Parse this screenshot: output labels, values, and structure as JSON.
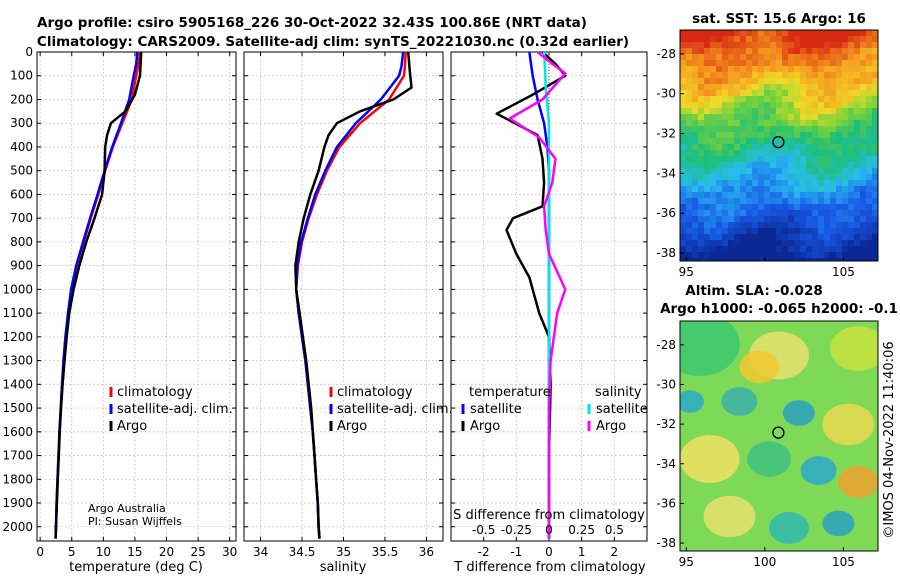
{
  "figure": {
    "title_line1": "Argo profile: csiro 5905168_226 30-Oct-2022 32.43S 100.86E (NRT data)",
    "title_line2": "Climatology: CARS2009. Satellite-adj clim: synTS_20221030.nc (0.32d earlier)",
    "imos_stamp": "©IMOS 04-Nov-2022 11:40:06",
    "credit_line1": "Argo Australia",
    "credit_line2": "PI: Susan Wijffels"
  },
  "colors": {
    "climatology": "#ff0000",
    "satellite": "#0000ff",
    "argo": "#000000",
    "sat_salinity": "#00e5ee",
    "argo_salinity": "#ff00ff"
  },
  "chart_data": [
    {
      "type": "line",
      "id": "temperature",
      "xlabel": "temperature (deg C)",
      "ylabel": "",
      "xlim": [
        -0.5,
        31
      ],
      "ylim": [
        2060,
        0
      ],
      "xticks": [
        0,
        5,
        10,
        15,
        20,
        25,
        30
      ],
      "xtick_labels": [
        "0",
        "5",
        "10",
        "15",
        "20",
        "25",
        "30"
      ],
      "yticks": [
        0,
        100,
        200,
        300,
        400,
        500,
        600,
        700,
        800,
        900,
        1000,
        1100,
        1200,
        1300,
        1400,
        1500,
        1600,
        1700,
        1800,
        1900,
        2000
      ],
      "grid": true,
      "legend": [
        "climatology",
        "satellite-adj. clim.",
        "Argo"
      ],
      "series": [
        {
          "name": "climatology",
          "color": "red",
          "points": [
            [
              15.8,
              0
            ],
            [
              15.6,
              50
            ],
            [
              15.2,
              100
            ],
            [
              14.5,
              200
            ],
            [
              13,
              300
            ],
            [
              11.5,
              400
            ],
            [
              10.3,
              500
            ],
            [
              9.2,
              600
            ],
            [
              8,
              700
            ],
            [
              6.9,
              800
            ],
            [
              5.8,
              900
            ],
            [
              5.0,
              1000
            ],
            [
              4.5,
              1100
            ],
            [
              4.1,
              1200
            ],
            [
              3.8,
              1300
            ],
            [
              3.5,
              1400
            ],
            [
              3.3,
              1500
            ],
            [
              3.1,
              1600
            ],
            [
              2.9,
              1700
            ],
            [
              2.75,
              1800
            ],
            [
              2.6,
              1900
            ],
            [
              2.5,
              2000
            ],
            [
              2.45,
              2050
            ]
          ]
        },
        {
          "name": "satellite-adj. clim.",
          "color": "blue",
          "points": [
            [
              15.4,
              0
            ],
            [
              15.2,
              50
            ],
            [
              14.8,
              100
            ],
            [
              14.1,
              200
            ],
            [
              12.8,
              300
            ],
            [
              11.4,
              400
            ],
            [
              10.2,
              500
            ],
            [
              9.1,
              600
            ],
            [
              7.9,
              700
            ],
            [
              6.8,
              800
            ],
            [
              5.7,
              900
            ],
            [
              4.9,
              1000
            ],
            [
              4.4,
              1100
            ],
            [
              4.0,
              1200
            ],
            [
              3.7,
              1300
            ],
            [
              3.45,
              1400
            ],
            [
              3.25,
              1500
            ],
            [
              3.05,
              1600
            ],
            [
              2.9,
              1700
            ],
            [
              2.75,
              1800
            ],
            [
              2.6,
              1900
            ],
            [
              2.5,
              2000
            ],
            [
              2.45,
              2050
            ]
          ]
        },
        {
          "name": "Argo",
          "color": "black",
          "points": [
            [
              16.0,
              0
            ],
            [
              15.9,
              50
            ],
            [
              15.8,
              100
            ],
            [
              15,
              180
            ],
            [
              13.5,
              250
            ],
            [
              11.2,
              300
            ],
            [
              10.6,
              350
            ],
            [
              10.3,
              400
            ],
            [
              10.2,
              500
            ],
            [
              9.8,
              600
            ],
            [
              8.6,
              700
            ],
            [
              7.3,
              800
            ],
            [
              6.2,
              900
            ],
            [
              5.3,
              1000
            ],
            [
              4.6,
              1100
            ],
            [
              4.2,
              1200
            ],
            [
              3.85,
              1300
            ],
            [
              3.55,
              1400
            ],
            [
              3.3,
              1500
            ],
            [
              3.1,
              1600
            ],
            [
              2.95,
              1700
            ],
            [
              2.8,
              1800
            ],
            [
              2.65,
              1900
            ],
            [
              2.5,
              2000
            ],
            [
              2.45,
              2050
            ]
          ]
        }
      ]
    },
    {
      "type": "line",
      "id": "salinity",
      "xlabel": "salinity",
      "ylabel": "",
      "xlim": [
        33.8,
        36.2
      ],
      "ylim": [
        2060,
        0
      ],
      "xticks": [
        34,
        34.5,
        35,
        35.5,
        36
      ],
      "xtick_labels": [
        "34",
        "34.5",
        "35",
        "35.5",
        "36"
      ],
      "grid": true,
      "legend": [
        "climatology",
        "satellite-adj. clim.",
        "Argo"
      ],
      "series": [
        {
          "name": "climatology",
          "color": "red",
          "points": [
            [
              35.75,
              0
            ],
            [
              35.74,
              60
            ],
            [
              35.73,
              100
            ],
            [
              35.55,
              200
            ],
            [
              35.2,
              300
            ],
            [
              34.95,
              400
            ],
            [
              34.8,
              500
            ],
            [
              34.68,
              600
            ],
            [
              34.58,
              700
            ],
            [
              34.5,
              800
            ],
            [
              34.45,
              900
            ],
            [
              34.43,
              1000
            ],
            [
              34.46,
              1100
            ],
            [
              34.5,
              1200
            ],
            [
              34.54,
              1300
            ],
            [
              34.57,
              1400
            ],
            [
              34.6,
              1500
            ],
            [
              34.63,
              1600
            ],
            [
              34.65,
              1700
            ],
            [
              34.67,
              1800
            ],
            [
              34.69,
              1900
            ],
            [
              34.7,
              2000
            ],
            [
              34.71,
              2050
            ]
          ]
        },
        {
          "name": "satellite-adj. clim.",
          "color": "blue",
          "points": [
            [
              35.72,
              0
            ],
            [
              35.7,
              60
            ],
            [
              35.67,
              100
            ],
            [
              35.45,
              200
            ],
            [
              35.15,
              300
            ],
            [
              34.92,
              400
            ],
            [
              34.78,
              500
            ],
            [
              34.66,
              600
            ],
            [
              34.57,
              700
            ],
            [
              34.49,
              800
            ],
            [
              34.44,
              900
            ],
            [
              34.43,
              1000
            ],
            [
              34.46,
              1100
            ],
            [
              34.5,
              1200
            ],
            [
              34.54,
              1300
            ],
            [
              34.57,
              1400
            ],
            [
              34.6,
              1500
            ],
            [
              34.63,
              1600
            ],
            [
              34.65,
              1700
            ],
            [
              34.67,
              1800
            ],
            [
              34.69,
              1900
            ],
            [
              34.7,
              2000
            ],
            [
              34.71,
              2050
            ]
          ]
        },
        {
          "name": "Argo",
          "color": "black",
          "points": [
            [
              35.78,
              0
            ],
            [
              35.8,
              80
            ],
            [
              35.82,
              150
            ],
            [
              35.6,
              200
            ],
            [
              35.2,
              250
            ],
            [
              34.92,
              300
            ],
            [
              34.82,
              350
            ],
            [
              34.77,
              400
            ],
            [
              34.7,
              500
            ],
            [
              34.6,
              600
            ],
            [
              34.52,
              700
            ],
            [
              34.46,
              800
            ],
            [
              34.42,
              900
            ],
            [
              34.43,
              1000
            ],
            [
              34.47,
              1100
            ],
            [
              34.51,
              1200
            ],
            [
              34.55,
              1300
            ],
            [
              34.58,
              1400
            ],
            [
              34.61,
              1500
            ],
            [
              34.63,
              1600
            ],
            [
              34.65,
              1700
            ],
            [
              34.67,
              1800
            ],
            [
              34.69,
              1900
            ],
            [
              34.7,
              2000
            ],
            [
              34.71,
              2050
            ]
          ]
        }
      ]
    },
    {
      "type": "line",
      "id": "difference",
      "xlabel": "T difference from climatology",
      "xlabel_top": "S difference from climatology",
      "xlim": [
        -3,
        3
      ],
      "ylim": [
        2060,
        0
      ],
      "xticks": [
        -2,
        -1,
        0,
        1,
        2
      ],
      "xtick_labels": [
        "-2",
        "-1",
        "0",
        "1",
        "2"
      ],
      "s_ticks": [
        -0.5,
        -0.25,
        0,
        0.25,
        0.5
      ],
      "s_tick_labels": [
        "-0.5",
        "-0.25",
        "0",
        "0.25",
        "0.5"
      ],
      "grid": true,
      "legend_left_title": "temperature",
      "legend_right_title": "salinity",
      "legend_left": [
        "satellite",
        "Argo"
      ],
      "legend_right": [
        "satellite",
        "Argo"
      ],
      "series": [
        {
          "name": "T satellite",
          "color": "blue",
          "points": [
            [
              -0.6,
              0
            ],
            [
              -0.55,
              50
            ],
            [
              -0.5,
              100
            ],
            [
              -0.35,
              200
            ],
            [
              -0.15,
              300
            ],
            [
              -0.05,
              400
            ],
            [
              0,
              500
            ],
            [
              0,
              2050
            ]
          ]
        },
        {
          "name": "T Argo",
          "color": "black",
          "points": [
            [
              -0.2,
              0
            ],
            [
              0.2,
              50
            ],
            [
              0.5,
              100
            ],
            [
              -0.5,
              180
            ],
            [
              -1.6,
              260
            ],
            [
              -0.35,
              350
            ],
            [
              -0.2,
              450
            ],
            [
              -0.15,
              550
            ],
            [
              -0.2,
              650
            ],
            [
              -1.1,
              700
            ],
            [
              -1.3,
              750
            ],
            [
              -1.0,
              850
            ],
            [
              -0.6,
              950
            ],
            [
              -0.3,
              1100
            ],
            [
              0,
              1200
            ],
            [
              0.05,
              1400
            ],
            [
              0,
              1700
            ],
            [
              0,
              2050
            ]
          ]
        },
        {
          "name": "S satellite",
          "color": "#00e5ee",
          "points": [
            [
              -0.15,
              0
            ],
            [
              -0.12,
              80
            ],
            [
              -0.1,
              150
            ],
            [
              0,
              300
            ],
            [
              0,
              2050
            ]
          ]
        },
        {
          "name": "S Argo",
          "color": "magenta",
          "points": [
            [
              -0.35,
              0
            ],
            [
              0.1,
              50
            ],
            [
              0.5,
              90
            ],
            [
              -0.2,
              200
            ],
            [
              -1.2,
              280
            ],
            [
              -0.3,
              360
            ],
            [
              0.2,
              450
            ],
            [
              0.1,
              550
            ],
            [
              -0.15,
              650
            ],
            [
              -0.1,
              750
            ],
            [
              0,
              850
            ],
            [
              0.5,
              1000
            ],
            [
              0.25,
              1100
            ],
            [
              0.05,
              1300
            ],
            [
              0,
              1500
            ],
            [
              0,
              2050
            ]
          ]
        }
      ]
    },
    {
      "type": "heatmap",
      "id": "sst_map",
      "title": "sat. SST: 15.6 Argo: 16",
      "xlim": [
        94.6,
        107.2
      ],
      "ylim": [
        -38.4,
        -26.8
      ],
      "xticks": [
        95,
        100,
        105
      ],
      "xtick_labels": [
        "95",
        "",
        "105"
      ],
      "yticks": [
        -28,
        -30,
        -32,
        -34,
        -36,
        -38
      ],
      "ytick_labels": [
        "-28",
        "-30",
        "-32",
        "-34",
        "-36",
        "-38"
      ],
      "marker": [
        100.86,
        -32.43
      ]
    },
    {
      "type": "heatmap",
      "id": "sla_map",
      "title_line1": "Altim. SLA: -0.028",
      "title_line2": "Argo h1000: -0.065 h2000: -0.1",
      "xlim": [
        94.6,
        107.2
      ],
      "ylim": [
        -38.4,
        -26.8
      ],
      "xticks": [
        95,
        100,
        105
      ],
      "xtick_labels": [
        "95",
        "100",
        "105"
      ],
      "yticks": [
        -28,
        -30,
        -32,
        -34,
        -36,
        -38
      ],
      "ytick_labels": [
        "-28",
        "-30",
        "-32",
        "-34",
        "-36",
        "-38"
      ],
      "marker": [
        100.86,
        -32.43
      ]
    }
  ]
}
